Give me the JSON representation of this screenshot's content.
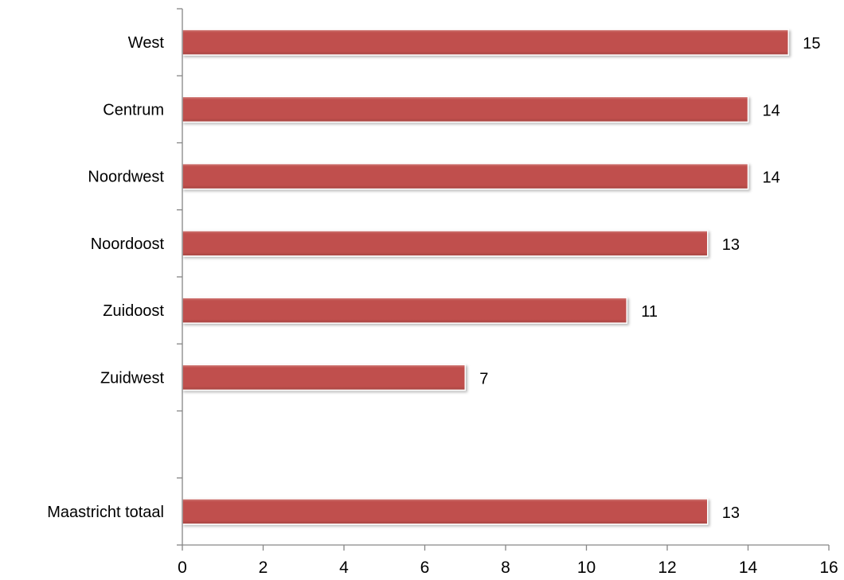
{
  "chart_data": {
    "type": "bar",
    "orientation": "horizontal",
    "categories": [
      "West",
      "Centrum",
      "Noordwest",
      "Noordoost",
      "Zuidoost",
      "Zuidwest",
      "",
      "Maastricht totaal"
    ],
    "values": [
      15,
      14,
      14,
      13,
      11,
      7,
      null,
      13
    ],
    "data_labels": [
      "15",
      "14",
      "14",
      "13",
      "11",
      "7",
      "",
      "13"
    ],
    "x_ticks": [
      "0",
      "2",
      "4",
      "6",
      "8",
      "10",
      "12",
      "14",
      "16"
    ],
    "xlim": [
      0,
      16
    ],
    "grid": false,
    "legend": "none",
    "title": "",
    "xlabel": "",
    "ylabel": "",
    "colors": {
      "bar": "#C0504D",
      "bar_highlight": "#D27F7C",
      "bar_shadow": "#8E3A38",
      "axis": "#868686",
      "text": "#000000"
    }
  }
}
